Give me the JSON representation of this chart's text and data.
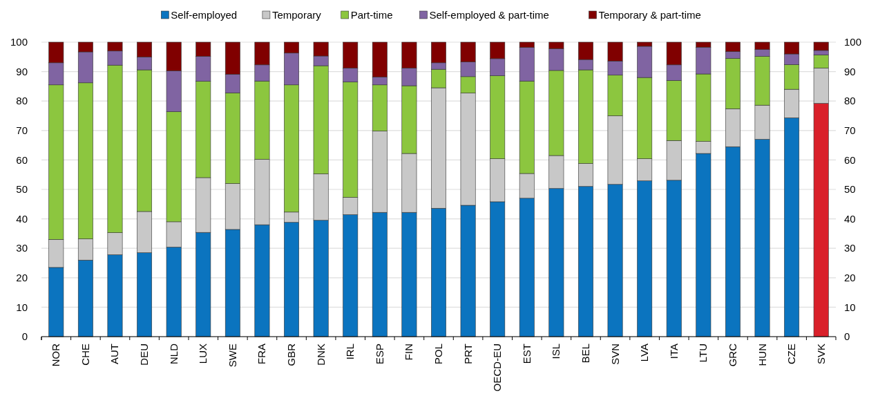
{
  "chart_data": {
    "type": "bar",
    "stacked": true,
    "legend": "top",
    "grid": "y",
    "categories": [
      "NOR",
      "CHE",
      "AUT",
      "DEU",
      "NLD",
      "LUX",
      "SWE",
      "FRA",
      "GBR",
      "DNK",
      "IRL",
      "ESP",
      "FIN",
      "POL",
      "PRT",
      "OECD-EU",
      "EST",
      "ISL",
      "BEL",
      "SVN",
      "LVA",
      "ITA",
      "LTU",
      "GRC",
      "HUN",
      "CZE",
      "SVK"
    ],
    "series": [
      {
        "name": "Self-employed",
        "color": "#0b74bf",
        "colors": [
          "#0b74bf",
          "#0b74bf",
          "#0b74bf",
          "#0b74bf",
          "#0b74bf",
          "#0b74bf",
          "#0b74bf",
          "#0b74bf",
          "#0b74bf",
          "#0b74bf",
          "#0b74bf",
          "#0b74bf",
          "#0b74bf",
          "#0b74bf",
          "#0b74bf",
          "#0b74bf",
          "#0b74bf",
          "#0b74bf",
          "#0b74bf",
          "#0b74bf",
          "#0b74bf",
          "#0b74bf",
          "#0b74bf",
          "#0b74bf",
          "#0b74bf",
          "#0b74bf",
          "#d9202a"
        ],
        "values": [
          23.5,
          26,
          27.8,
          28.5,
          30.4,
          35.4,
          36.4,
          38,
          38.8,
          39.5,
          41.4,
          42.2,
          42.2,
          43.6,
          44.6,
          45.8,
          47,
          50.3,
          51,
          51.7,
          52.9,
          53.1,
          62.2,
          64.5,
          67,
          74.3,
          79.2
        ]
      },
      {
        "name": "Temporary",
        "color": "#c8c8c8",
        "values": [
          9.5,
          7.2,
          7.5,
          14,
          8.6,
          18.6,
          15.6,
          22.2,
          3.5,
          15.8,
          5.9,
          27.6,
          20,
          40.9,
          38.1,
          14.6,
          8.4,
          11.2,
          7.8,
          23.3,
          7.5,
          13.5,
          4.1,
          12.9,
          11.6,
          9.7,
          12
        ]
      },
      {
        "name": "Part-time",
        "color": "#8cc63f",
        "values": [
          52.5,
          53,
          56.9,
          48.1,
          37.4,
          32.7,
          30.8,
          26.6,
          43.2,
          36.7,
          39.2,
          15.7,
          23,
          6.3,
          5.6,
          28.2,
          31.4,
          28.9,
          31.8,
          13.8,
          27.6,
          20.4,
          22.9,
          17.1,
          16.6,
          8.4,
          4.5
        ]
      },
      {
        "name": "Self-employed & part-time",
        "color": "#8064a2",
        "values": [
          7.5,
          10.5,
          4.8,
          4.4,
          13.9,
          8.5,
          6.3,
          5.5,
          10.8,
          3.3,
          4.7,
          2.7,
          6,
          2.2,
          5,
          5.8,
          11.4,
          7.4,
          3.5,
          4.8,
          10.6,
          5.3,
          9.1,
          2.3,
          2.3,
          3.6,
          1.5
        ]
      },
      {
        "name": "Temporary & part-time",
        "color": "#800000",
        "values": [
          7,
          3.3,
          3,
          5,
          9.7,
          4.8,
          10.9,
          7.7,
          3.7,
          4.7,
          8.8,
          11.8,
          8.8,
          7,
          6.7,
          5.6,
          1.8,
          2.2,
          5.9,
          6.4,
          1.4,
          7.7,
          1.7,
          3.2,
          2.5,
          4,
          2.8
        ]
      }
    ],
    "ylim": [
      0,
      100
    ],
    "yticks": [
      0,
      10,
      20,
      30,
      40,
      50,
      60,
      70,
      80,
      90,
      100
    ],
    "y2lim": [
      0,
      100
    ],
    "y2ticks": [
      0,
      10,
      20,
      30,
      40,
      50,
      60,
      70,
      80,
      90,
      100
    ]
  }
}
